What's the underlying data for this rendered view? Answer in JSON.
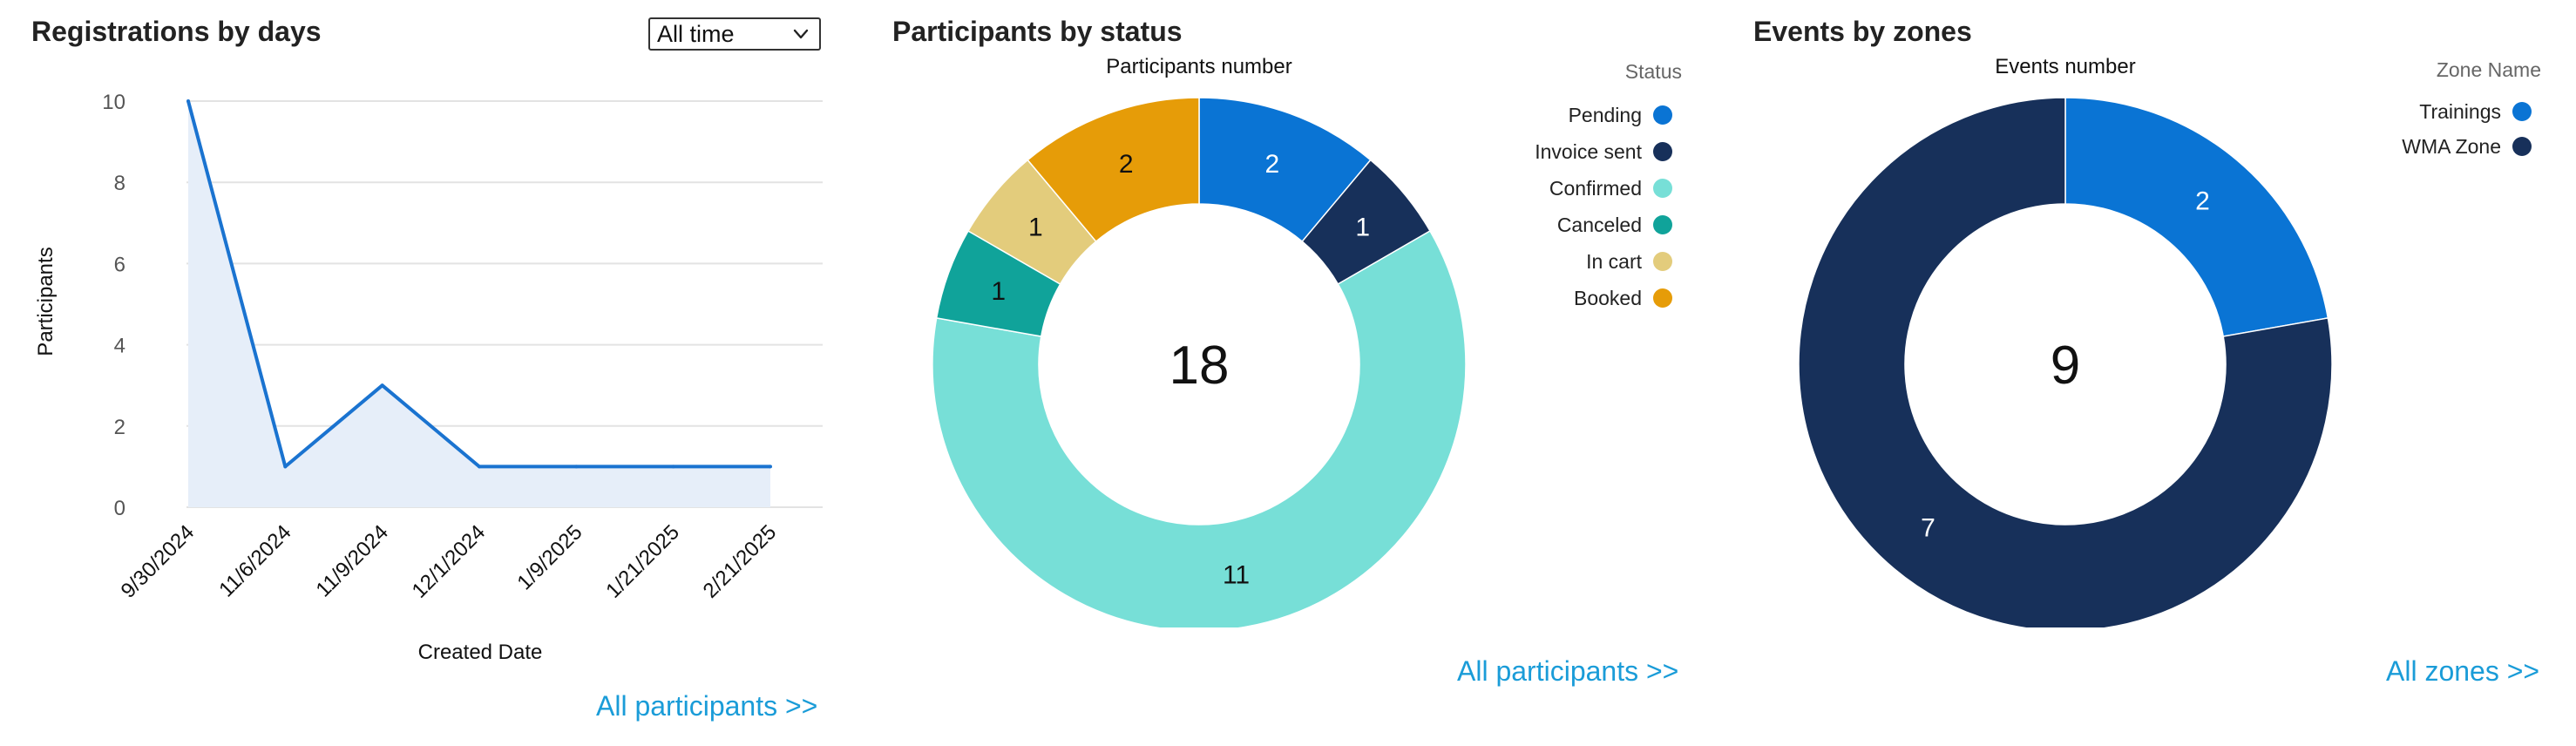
{
  "panels": {
    "registrations": {
      "title": "Registrations by days",
      "range_select": {
        "value": "All time"
      },
      "link": "All participants >>"
    },
    "status": {
      "title": "Participants by status",
      "link": "All participants >>"
    },
    "zones": {
      "title": "Events by zones",
      "link": "All zones >>"
    }
  },
  "colors": {
    "line": "#1a73d0",
    "area": "#e6eef9",
    "grid": "#e3e3e3"
  },
  "chart_data": [
    {
      "type": "area",
      "title": "",
      "xlabel": "Created Date",
      "ylabel": "Participants",
      "categories": [
        "9/30/2024",
        "11/6/2024",
        "11/9/2024",
        "12/1/2024",
        "1/9/2025",
        "1/21/2025",
        "2/21/2025"
      ],
      "series": [
        {
          "values": [
            10,
            1,
            3,
            1,
            1,
            1,
            1
          ]
        }
      ],
      "yticks": [
        0,
        2,
        4,
        6,
        8,
        10
      ],
      "ylim": [
        0,
        10
      ],
      "grid": true
    },
    {
      "type": "pie",
      "title": "Participants number",
      "legend_title": "Status",
      "total": 18,
      "slices": [
        {
          "label": "Pending",
          "value": 2,
          "color": "#0a74d4"
        },
        {
          "label": "Invoice sent",
          "value": 1,
          "color": "#17305a"
        },
        {
          "label": "Confirmed",
          "value": 11,
          "color": "#77dfd7"
        },
        {
          "label": "Canceled",
          "value": 1,
          "color": "#10a39a"
        },
        {
          "label": "In cart",
          "value": 1,
          "color": "#e3cc7c"
        },
        {
          "label": "Booked",
          "value": 2,
          "color": "#e69c08"
        }
      ],
      "legend_position": "top-right"
    },
    {
      "type": "pie",
      "title": "Events number",
      "legend_title": "Zone Name",
      "total": 9,
      "slices": [
        {
          "label": "Trainings",
          "value": 2,
          "color": "#0a74d4"
        },
        {
          "label": "WMA Zone",
          "value": 7,
          "color": "#17305a"
        }
      ],
      "legend_position": "top-right"
    }
  ]
}
